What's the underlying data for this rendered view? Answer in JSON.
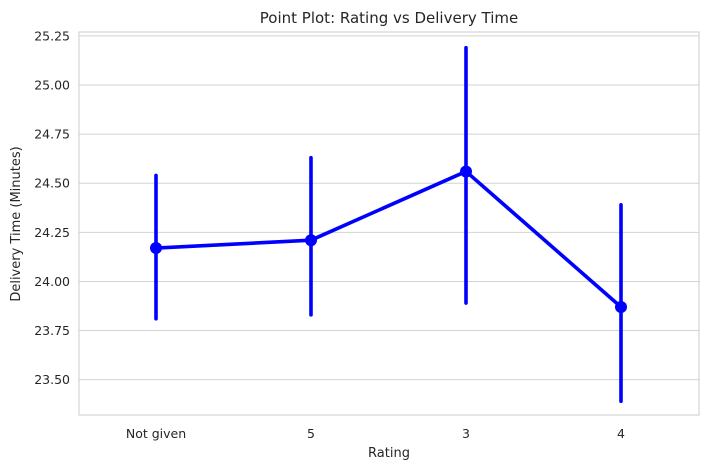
{
  "chart_data": {
    "type": "point",
    "title": "Point Plot: Rating vs Delivery Time",
    "xlabel": "Rating",
    "ylabel": "Delivery Time (Minutes)",
    "categories": [
      "Not given",
      "5",
      "3",
      "4"
    ],
    "series": [
      {
        "values": [
          24.17,
          24.21,
          24.56,
          23.87
        ],
        "ci_low": [
          23.81,
          23.83,
          23.89,
          23.39
        ],
        "ci_high": [
          24.54,
          24.63,
          25.19,
          24.39
        ]
      }
    ],
    "yticks": [
      23.5,
      23.75,
      24.0,
      24.25,
      24.5,
      24.75,
      25.0,
      25.25
    ],
    "ytick_labels": [
      "23.50",
      "23.75",
      "24.00",
      "24.25",
      "24.50",
      "24.75",
      "25.00",
      "25.25"
    ],
    "ylim": [
      23.32,
      25.27
    ],
    "grid": "y",
    "colors": {
      "series": "#0000ff",
      "grid": "#d3d3d3",
      "spine": "#cccccc",
      "text": "#262626"
    }
  }
}
